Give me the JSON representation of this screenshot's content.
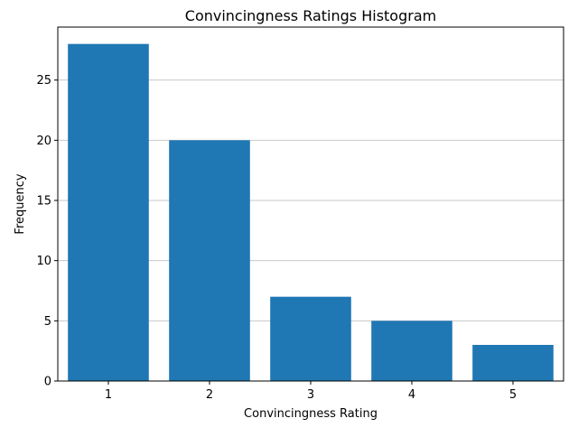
{
  "chart_data": {
    "type": "bar",
    "title": "Convincingness Ratings Histogram",
    "xlabel": "Convincingness Rating",
    "ylabel": "Frequency",
    "categories": [
      "1",
      "2",
      "3",
      "4",
      "5"
    ],
    "values": [
      28,
      20,
      7,
      5,
      3
    ],
    "ylim": [
      0,
      29.4
    ],
    "yticks": [
      0,
      5,
      10,
      15,
      20,
      25
    ],
    "grid": "horizontal",
    "bar_color": "#1f77b4",
    "grid_color": "#c8c8c8"
  }
}
